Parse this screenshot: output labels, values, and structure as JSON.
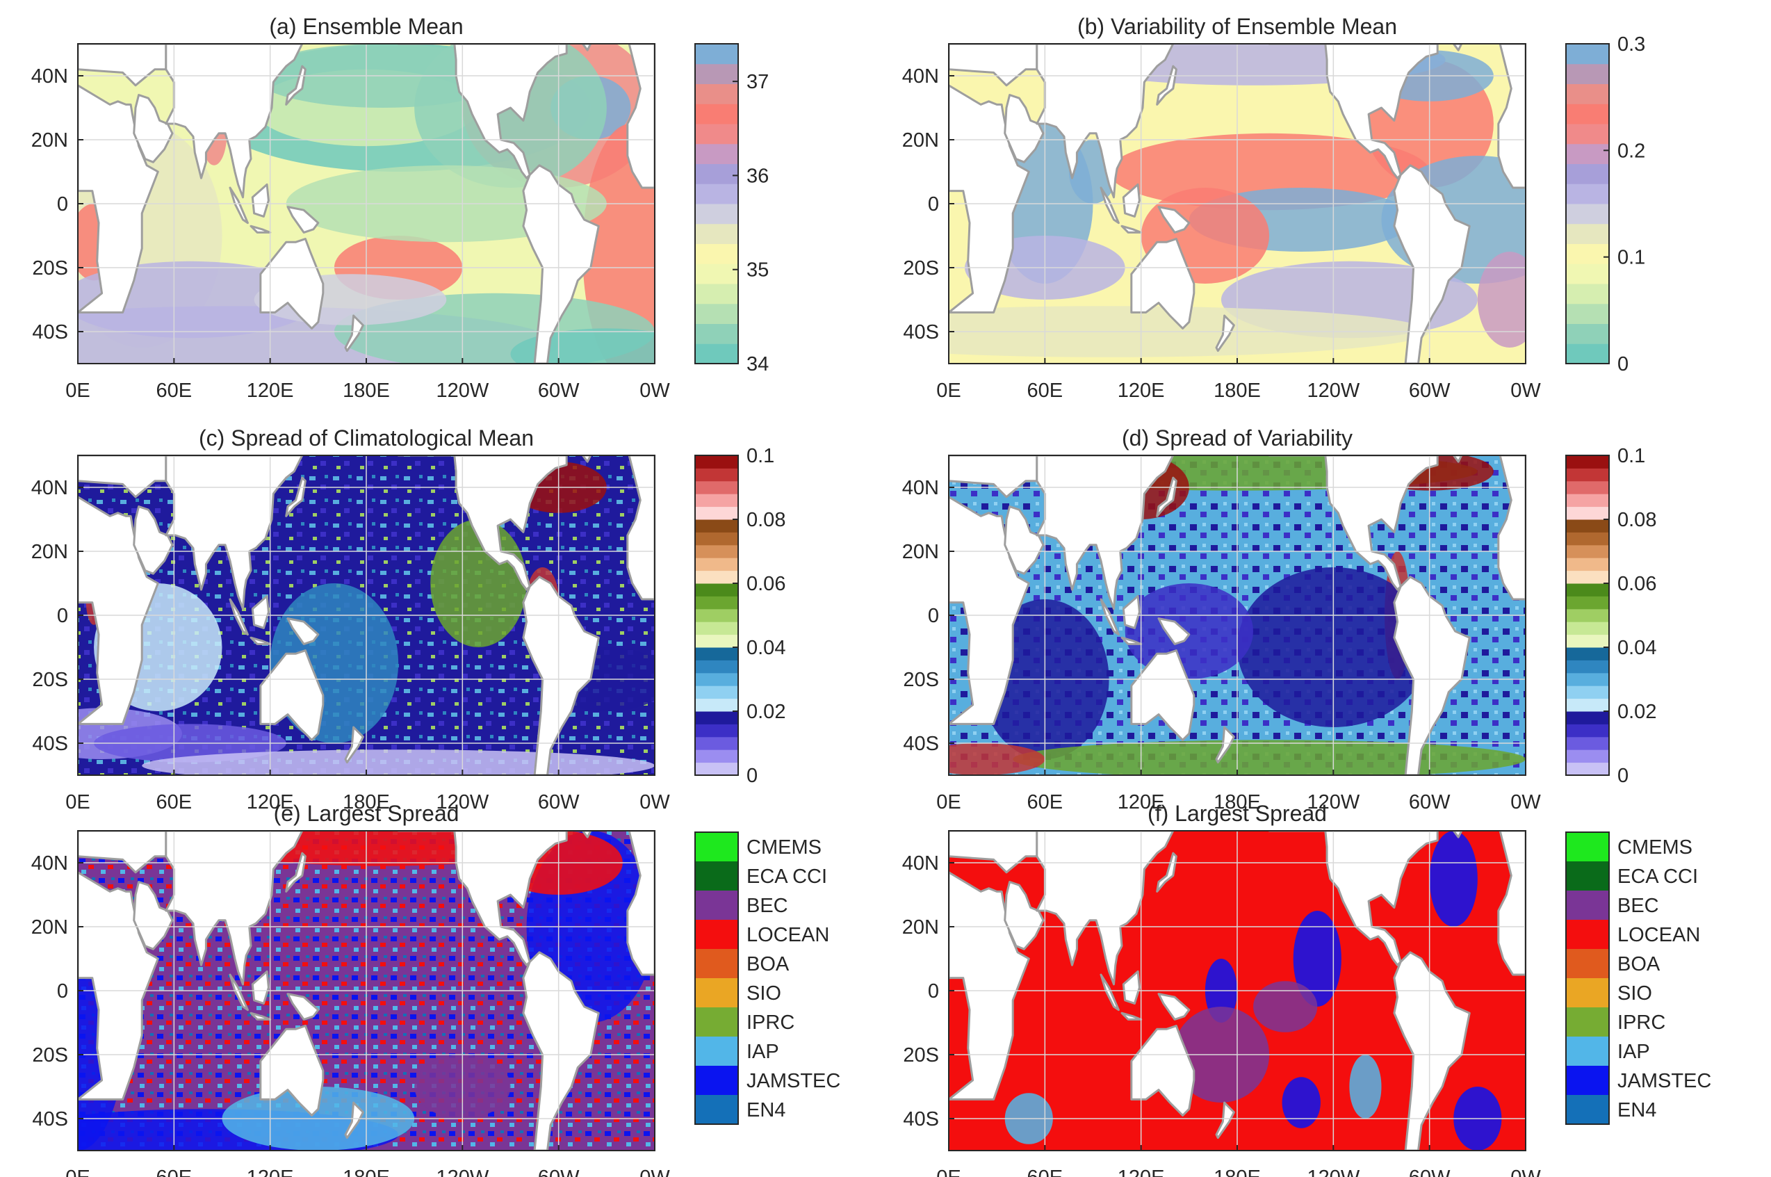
{
  "figure": {
    "axes": {
      "x_ticks": [
        "0E",
        "60E",
        "120E",
        "180E",
        "120W",
        "60W",
        "0W"
      ],
      "y_ticks": [
        "40N",
        "20N",
        "0",
        "20S",
        "40S"
      ]
    }
  },
  "chart_data": [
    {
      "type": "heatmap",
      "panel": "a",
      "title": "(a) Ensemble Mean",
      "xlim": [
        0,
        360
      ],
      "ylim": [
        -50,
        50
      ],
      "grid": true,
      "colorbar": {
        "ticks": [
          "34",
          "35",
          "36",
          "37"
        ],
        "range": [
          34,
          37.4
        ]
      },
      "colors": [
        "#6fc9bc",
        "#8fd1b8",
        "#b5e0b3",
        "#d6eeb0",
        "#f0f7b2",
        "#faf6ae",
        "#e6e7bf",
        "#cfcfdf",
        "#b9b4e3",
        "#a79fd9",
        "#c89ac3",
        "#f08a8a",
        "#f97d73",
        "#e98f89",
        "#b898b5",
        "#7eaed6"
      ]
    },
    {
      "type": "heatmap",
      "panel": "b",
      "title": "(b) Variability of Ensemble Mean",
      "xlim": [
        0,
        360
      ],
      "ylim": [
        -50,
        50
      ],
      "grid": true,
      "colorbar": {
        "ticks": [
          "0",
          "0.1",
          "0.2",
          "0.3"
        ],
        "range": [
          0,
          0.3
        ]
      },
      "colors": [
        "#6fc9bc",
        "#8fd1b8",
        "#b5e0b3",
        "#d6eeb0",
        "#f0f7b2",
        "#faf6ae",
        "#e6e7bf",
        "#cfcfdf",
        "#b9b4e3",
        "#a79fd9",
        "#c89ac3",
        "#f08a8a",
        "#f97d73",
        "#e98f89",
        "#b898b5",
        "#7eaed6"
      ]
    },
    {
      "type": "heatmap",
      "panel": "c",
      "title": "(c) Spread of Climatological Mean",
      "xlim": [
        0,
        360
      ],
      "ylim": [
        -50,
        50
      ],
      "grid": true,
      "colorbar": {
        "ticks": [
          "0",
          "0.02",
          "0.04",
          "0.06",
          "0.08",
          "0.1"
        ],
        "range": [
          0,
          0.1
        ]
      },
      "colors": [
        "#c8c1f5",
        "#9b8df0",
        "#6b5be0",
        "#3c2fc6",
        "#1f1a9c",
        "#c7e9f9",
        "#8fd0f1",
        "#58aede",
        "#2f86c0",
        "#16689a",
        "#e9f6be",
        "#c7e895",
        "#9fce63",
        "#6ba630",
        "#4b8a1b",
        "#fbe0c0",
        "#f0b98a",
        "#d6905a",
        "#b0682f",
        "#8a4a17",
        "#fdd7d7",
        "#f5a3a3",
        "#e06a6a",
        "#c23636",
        "#9a1010"
      ]
    },
    {
      "type": "heatmap",
      "panel": "d",
      "title": "(d) Spread of Variability",
      "xlim": [
        0,
        360
      ],
      "ylim": [
        -50,
        50
      ],
      "grid": true,
      "colorbar": {
        "ticks": [
          "0",
          "0.02",
          "0.04",
          "0.06",
          "0.08",
          "0.1"
        ],
        "range": [
          0,
          0.1
        ]
      },
      "colors": [
        "#c8c1f5",
        "#9b8df0",
        "#6b5be0",
        "#3c2fc6",
        "#1f1a9c",
        "#c7e9f9",
        "#8fd0f1",
        "#58aede",
        "#2f86c0",
        "#16689a",
        "#e9f6be",
        "#c7e895",
        "#9fce63",
        "#6ba630",
        "#4b8a1b",
        "#fbe0c0",
        "#f0b98a",
        "#d6905a",
        "#b0682f",
        "#8a4a17",
        "#fdd7d7",
        "#f5a3a3",
        "#e06a6a",
        "#c23636",
        "#9a1010"
      ]
    },
    {
      "type": "heatmap",
      "panel": "e",
      "title": "(e) Largest Spread",
      "xlim": [
        0,
        360
      ],
      "ylim": [
        -50,
        50
      ],
      "grid": true,
      "legend": {
        "entries": [
          "CMEMS",
          "ECA CCI",
          "BEC",
          "LOCEAN",
          "BOA",
          "SIO",
          "IPRC",
          "IAP",
          "JAMSTEC",
          "EN4"
        ],
        "colors": [
          "#1ee81e",
          "#0a6b1a",
          "#7a3596",
          "#f40e0e",
          "#e05a1e",
          "#eaa624",
          "#76ac33",
          "#52b6e8",
          "#0a14f0",
          "#1470b8"
        ]
      }
    },
    {
      "type": "heatmap",
      "panel": "f",
      "title": "(f) Largest Spread",
      "xlim": [
        0,
        360
      ],
      "ylim": [
        -50,
        50
      ],
      "grid": true,
      "legend": {
        "entries": [
          "CMEMS",
          "ECA CCI",
          "BEC",
          "LOCEAN",
          "BOA",
          "SIO",
          "IPRC",
          "IAP",
          "JAMSTEC",
          "EN4"
        ],
        "colors": [
          "#1ee81e",
          "#0a6b1a",
          "#7a3596",
          "#f40e0e",
          "#e05a1e",
          "#eaa624",
          "#76ac33",
          "#52b6e8",
          "#0a14f0",
          "#1470b8"
        ]
      }
    }
  ]
}
